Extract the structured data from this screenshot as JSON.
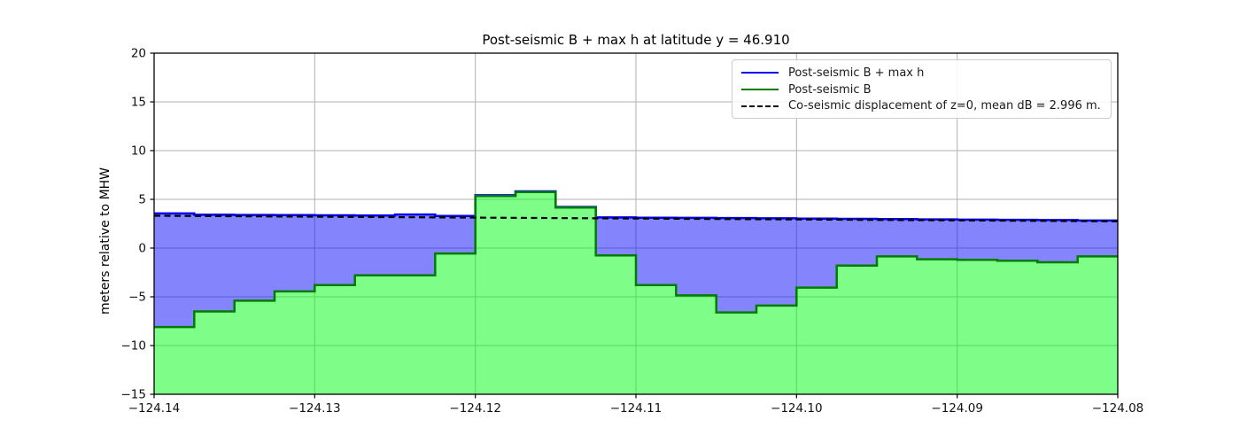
{
  "title": "Post-seismic B + max h at latitude y = 46.910",
  "ylabel": "meters relative to MHW",
  "legend": {
    "items": [
      {
        "label": "Post-seismic B + max h",
        "color": "#0000ee",
        "style": "solid"
      },
      {
        "label": "Post-seismic B",
        "color": "#007d00",
        "style": "solid"
      },
      {
        "label": "Co-seismic displacement of z=0, mean dB = 2.996 m.",
        "color": "#000000",
        "style": "dashed"
      }
    ],
    "position": "upper right"
  },
  "colors": {
    "grid": "#b0b0b0",
    "land_fill": "rgba(0,252,20,0.5)",
    "land_line": "#007d00",
    "water_fill": "rgba(10,10,250,0.5)",
    "water_line": "#0000ee",
    "dashed_line": "#000000",
    "spine": "#000000",
    "tick_text": "#111111"
  },
  "chart_data": {
    "type": "area",
    "title": "Post-seismic B + max h at latitude y = 46.910",
    "xlabel": "",
    "ylabel": "meters relative to MHW",
    "xlim": [
      -124.14,
      -124.08
    ],
    "ylim": [
      -15,
      20
    ],
    "grid": true,
    "legend_position": "upper right",
    "xticks": [
      -124.14,
      -124.13,
      -124.12,
      -124.11,
      -124.1,
      -124.09,
      -124.08
    ],
    "xtick_labels": [
      "−124.14",
      "−124.13",
      "−124.12",
      "−124.11",
      "−124.10",
      "−124.09",
      "−124.08"
    ],
    "yticks": [
      20,
      15,
      10,
      5,
      0,
      -5,
      -10,
      -15
    ],
    "ytick_labels": [
      "20",
      "15",
      "10",
      "5",
      "0",
      "−5",
      "−10",
      "−15"
    ],
    "x_edges": [
      -124.14,
      -124.1375,
      -124.135,
      -124.1325,
      -124.13,
      -124.1275,
      -124.125,
      -124.1225,
      -124.12,
      -124.1175,
      -124.115,
      -124.1125,
      -124.11,
      -124.1075,
      -124.105,
      -124.1025,
      -124.1,
      -124.0975,
      -124.095,
      -124.0925,
      -124.09,
      -124.0875,
      -124.085,
      -124.0825,
      -124.08
    ],
    "series": [
      {
        "name": "Post-seismic B + max h",
        "values": [
          3.55,
          3.42,
          3.4,
          3.38,
          3.36,
          3.35,
          3.45,
          3.3,
          5.42,
          5.82,
          4.22,
          3.15,
          3.12,
          3.1,
          3.08,
          3.05,
          3.02,
          3.0,
          2.97,
          2.95,
          2.92,
          2.9,
          2.87,
          2.83
        ]
      },
      {
        "name": "Post-seismic B",
        "values": [
          -8.1,
          -6.5,
          -5.4,
          -4.45,
          -3.8,
          -2.8,
          -2.8,
          -0.55,
          5.35,
          5.75,
          4.15,
          -0.75,
          -3.8,
          -4.85,
          -6.6,
          -5.9,
          -4.05,
          -1.8,
          -0.85,
          -1.15,
          -1.2,
          -1.3,
          -1.45,
          -0.85
        ]
      },
      {
        "name": "Co-seismic displacement of z=0",
        "mean_dB": 2.996,
        "x": [
          -124.14,
          -124.08
        ],
        "y": [
          3.32,
          2.75
        ]
      }
    ]
  }
}
